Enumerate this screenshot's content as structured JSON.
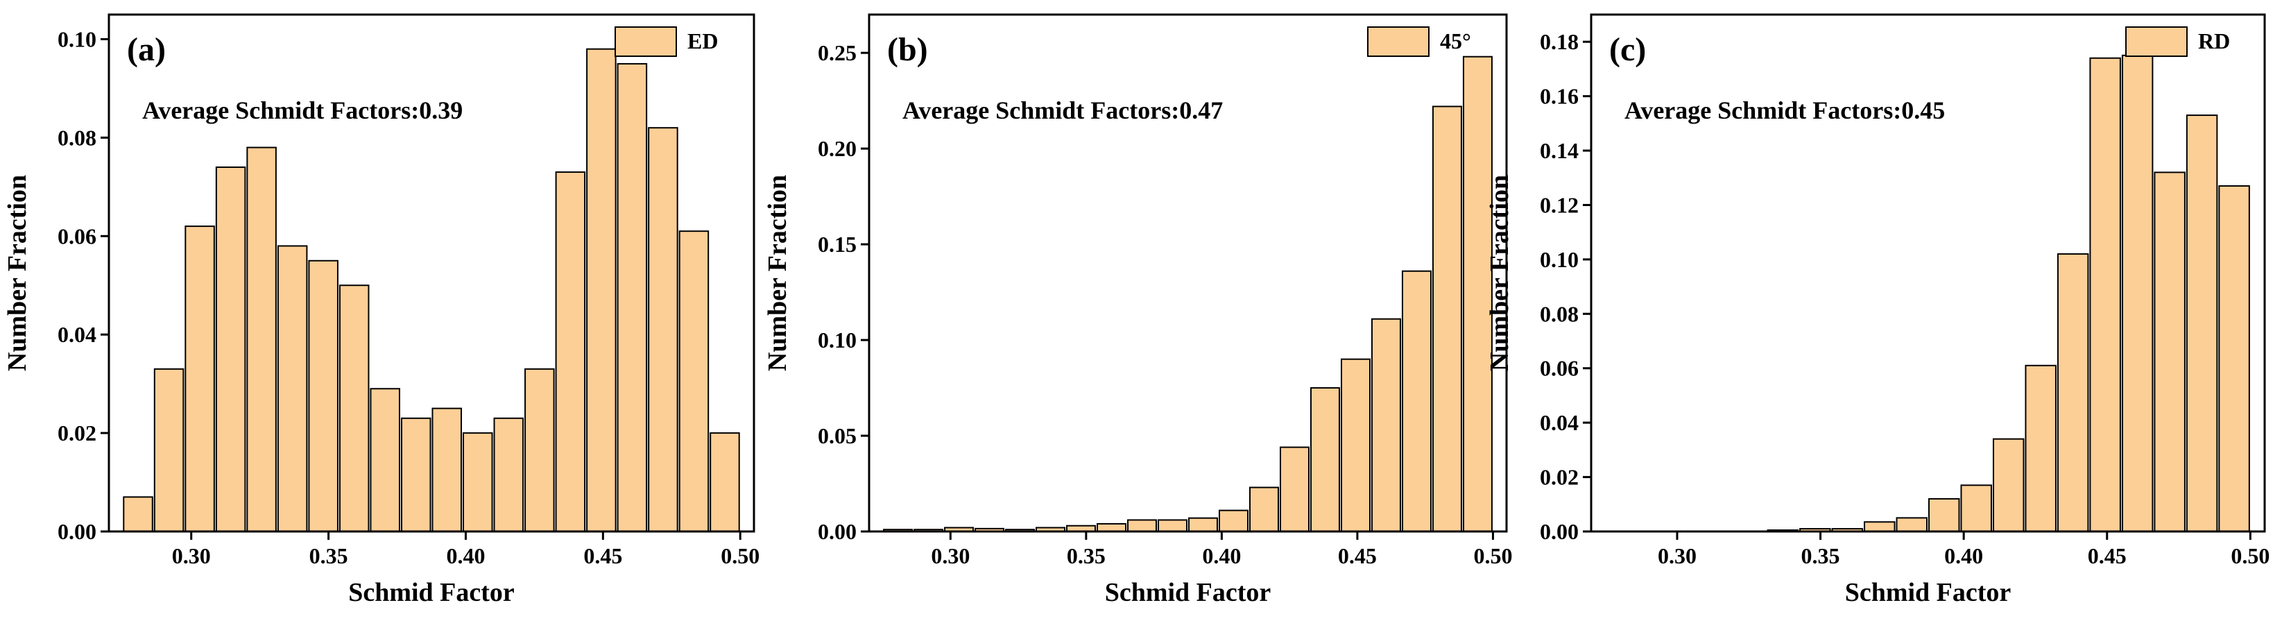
{
  "chart_data": [
    {
      "type": "histogram",
      "title": "(a)",
      "annotation": "Average Schmidt Factors:0.39",
      "x_label": "Schmid Factor",
      "y_label": "Number Fraction",
      "bins": [
        0.275,
        0.28625,
        0.2975,
        0.30875,
        0.32,
        0.33125,
        0.3425,
        0.35375,
        0.365,
        0.37625,
        0.3875,
        0.39875,
        0.41,
        0.42125,
        0.4325,
        0.44375,
        0.455,
        0.46625,
        0.4775,
        0.48875,
        0.5
      ],
      "series": [
        {
          "name": "ED",
          "color": "#fccf97",
          "values": [
            0.007,
            0.033,
            0.062,
            0.074,
            0.078,
            0.058,
            0.055,
            0.05,
            0.029,
            0.023,
            0.025,
            0.02,
            0.023,
            0.033,
            0.073,
            0.098,
            0.095,
            0.082,
            0.061,
            0.02
          ]
        }
      ],
      "xlim": [
        0.27,
        0.505
      ],
      "xticks": [
        {
          "value": 0.3,
          "label": "0.30"
        },
        0.35,
        {
          "value": 0.4,
          "label": "0.40"
        },
        0.45,
        {
          "value": 0.5,
          "label": "0.50"
        }
      ],
      "ylim": [
        0,
        0.105
      ],
      "yticks": [
        {
          "value": 0,
          "label": "0.00"
        },
        0.02,
        0.04,
        0.06,
        0.08,
        {
          "value": 0.1,
          "label": "0.10"
        }
      ],
      "legend": "upper right"
    },
    {
      "type": "histogram",
      "title": "(b)",
      "annotation": "Average Schmidt Factors:0.47",
      "x_label": "Schmid Factor",
      "y_label": "Number Fraction",
      "bins": [
        0.275,
        0.28625,
        0.2975,
        0.30875,
        0.32,
        0.33125,
        0.3425,
        0.35375,
        0.365,
        0.37625,
        0.3875,
        0.39875,
        0.41,
        0.42125,
        0.4325,
        0.44375,
        0.455,
        0.46625,
        0.4775,
        0.48875,
        0.5
      ],
      "series": [
        {
          "name": "45°",
          "color": "#fccf97",
          "values": [
            0.001,
            0.001,
            0.002,
            0.0015,
            0.001,
            0.002,
            0.003,
            0.004,
            0.006,
            0.006,
            0.007,
            0.011,
            0.023,
            0.044,
            0.075,
            0.09,
            0.111,
            0.136,
            0.222,
            0.248
          ]
        }
      ],
      "xlim": [
        0.27,
        0.505
      ],
      "xticks": [
        {
          "value": 0.3,
          "label": "0.30"
        },
        0.35,
        {
          "value": 0.4,
          "label": "0.40"
        },
        0.45,
        {
          "value": 0.5,
          "label": "0.50"
        }
      ],
      "ylim": [
        0,
        0.27
      ],
      "yticks": [
        {
          "value": 0,
          "label": "0.00"
        },
        0.05,
        {
          "value": 0.1,
          "label": "0.10"
        },
        0.15,
        {
          "value": 0.2,
          "label": "0.20"
        },
        0.25
      ],
      "legend": "upper right"
    },
    {
      "type": "histogram",
      "title": "(c)",
      "annotation": "Average Schmidt Factors:0.45",
      "x_label": "Schmid Factor",
      "y_label": "Number Fraction",
      "bins": [
        0.275,
        0.28625,
        0.2975,
        0.30875,
        0.32,
        0.33125,
        0.3425,
        0.35375,
        0.365,
        0.37625,
        0.3875,
        0.39875,
        0.41,
        0.42125,
        0.4325,
        0.44375,
        0.455,
        0.46625,
        0.4775,
        0.48875,
        0.5
      ],
      "series": [
        {
          "name": "RD",
          "color": "#fccf97",
          "values": [
            0,
            0,
            0,
            0,
            0,
            0.0005,
            0.001,
            0.001,
            0.0035,
            0.005,
            0.012,
            0.017,
            0.034,
            0.061,
            0.102,
            0.174,
            0.175,
            0.132,
            0.153,
            0.127
          ]
        }
      ],
      "xlim": [
        0.27,
        0.505
      ],
      "xticks": [
        {
          "value": 0.3,
          "label": "0.30"
        },
        0.35,
        {
          "value": 0.4,
          "label": "0.40"
        },
        0.45,
        {
          "value": 0.5,
          "label": "0.50"
        }
      ],
      "ylim": [
        0,
        0.19
      ],
      "yticks": [
        {
          "value": 0,
          "label": "0.00"
        },
        0.02,
        0.04,
        0.06,
        0.08,
        {
          "value": 0.1,
          "label": "0.10"
        },
        0.12,
        0.14,
        0.16,
        0.18
      ],
      "legend": "upper right"
    }
  ]
}
